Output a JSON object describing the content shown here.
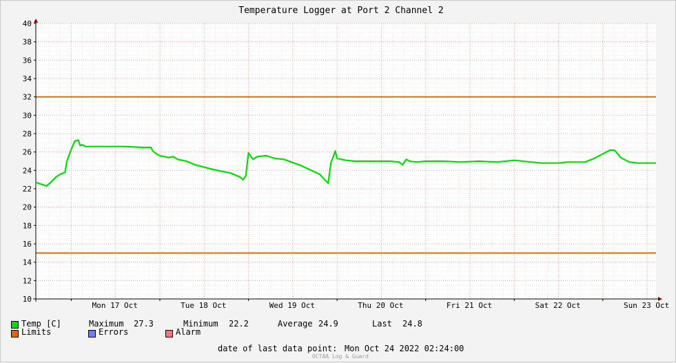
{
  "chart_data": {
    "type": "line",
    "title": "Temperature Logger at Port 2 Channel 2",
    "ylim": [
      10,
      40
    ],
    "y_ticks": [
      "10",
      "12",
      "14",
      "16",
      "18",
      "20",
      "22",
      "24",
      "26",
      "28",
      "30",
      "32",
      "34",
      "36",
      "38",
      "40"
    ],
    "x_ticks": [
      "Mon 17 Oct",
      "Tue 18 Oct",
      "Wed 19 Oct",
      "Thu 20 Oct",
      "Fri 21 Oct",
      "Sat 22 Oct",
      "Sun 23 Oct"
    ],
    "x_range_days": [
      16.6,
      23.6
    ],
    "limits": {
      "upper": 32,
      "lower": 15,
      "color": "#e06a00"
    },
    "series": [
      {
        "name": "Temp [C]",
        "color": "#00e000",
        "x": [
          16.6,
          16.72,
          16.78,
          16.79,
          16.83,
          16.88,
          16.93,
          16.95,
          17.0,
          17.04,
          17.08,
          17.1,
          17.12,
          17.16,
          17.2,
          17.28,
          17.4,
          17.6,
          17.8,
          17.9,
          17.92,
          17.96,
          18.0,
          18.1,
          18.15,
          18.2,
          18.3,
          18.4,
          18.6,
          18.8,
          18.9,
          18.94,
          18.97,
          19.0,
          19.05,
          19.1,
          19.2,
          19.3,
          19.4,
          19.6,
          19.8,
          19.9,
          19.93,
          19.98,
          20.0,
          20.05,
          20.1,
          20.2,
          20.4,
          20.6,
          20.7,
          20.74,
          20.78,
          20.82,
          20.9,
          21.0,
          21.2,
          21.4,
          21.6,
          21.8,
          22.0,
          22.3,
          22.5,
          22.6,
          22.8,
          22.9,
          23.0,
          23.08,
          23.13,
          23.16,
          23.2,
          23.3,
          23.4,
          23.5,
          23.6
        ],
        "values": [
          22.7,
          22.3,
          22.8,
          22.9,
          23.3,
          23.6,
          23.8,
          25.0,
          26.3,
          27.2,
          27.3,
          26.7,
          26.8,
          26.6,
          26.6,
          26.6,
          26.6,
          26.6,
          26.5,
          26.5,
          26.1,
          25.8,
          25.6,
          25.4,
          25.5,
          25.2,
          25.0,
          24.6,
          24.1,
          23.7,
          23.3,
          23.0,
          23.4,
          25.9,
          25.2,
          25.5,
          25.6,
          25.3,
          25.2,
          24.5,
          23.6,
          22.6,
          24.8,
          26.1,
          25.3,
          25.2,
          25.1,
          25.0,
          25.0,
          25.0,
          24.9,
          24.6,
          25.2,
          25.0,
          24.9,
          25.0,
          25.0,
          24.9,
          25.0,
          24.9,
          25.1,
          24.8,
          24.8,
          24.9,
          24.9,
          25.3,
          25.8,
          26.2,
          26.2,
          25.9,
          25.4,
          24.9,
          24.8,
          24.8,
          24.8
        ]
      }
    ]
  },
  "legend": {
    "temp_label": "Temp [C]",
    "maximum_label": "Maximum",
    "maximum_value": "27.3",
    "minimum_label": "Minimum",
    "minimum_value": "22.2",
    "average_label": "Average",
    "average_value": "24.9",
    "last_label": "Last",
    "last_value": "24.8",
    "limits_label": "Limits",
    "errors_label": "Errors",
    "alarm_label": "Alarm",
    "temp_color": "#00e000",
    "limits_color": "#e06a00",
    "errors_color": "#6a7ff0",
    "alarm_color": "#f07878"
  },
  "footer": {
    "last_point_label": "date of last data point:",
    "last_point_value": "Mon Oct 24 2022 02:24:00",
    "watermark": "OCTAA Log & Guard"
  }
}
